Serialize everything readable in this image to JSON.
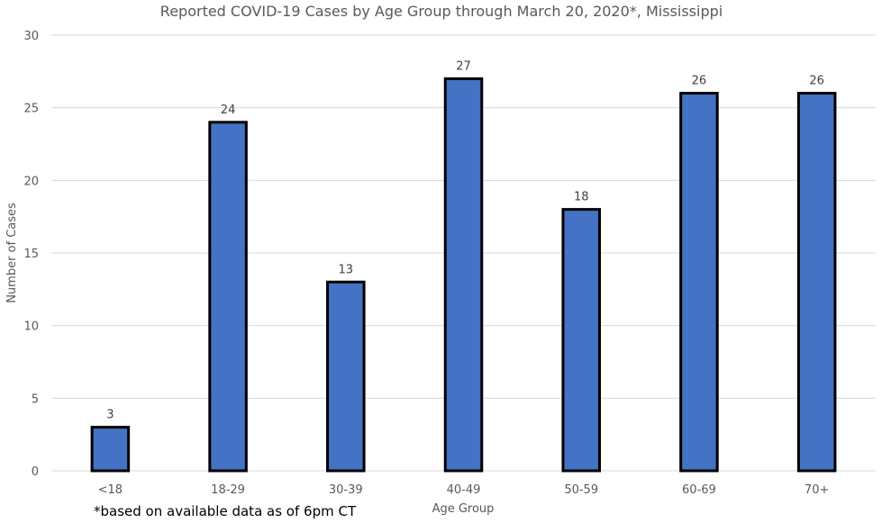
{
  "chart_data": {
    "type": "bar",
    "title": "Reported COVID-19 Cases by Age Group through March 20, 2020*, Mississippi",
    "xlabel": "Age Group",
    "ylabel": "Number of Cases",
    "categories": [
      "<18",
      "18-29",
      "30-39",
      "40-49",
      "50-59",
      "60-69",
      "70+"
    ],
    "values": [
      3,
      24,
      13,
      27,
      18,
      26,
      26
    ],
    "ylim": [
      0,
      30
    ],
    "yticks": [
      0,
      5,
      10,
      15,
      20,
      25,
      30
    ],
    "grid": true,
    "legend": "none",
    "bar_color": "#4472c4",
    "bar_outline": "#000000",
    "footnote": "*based on available data as of 6pm CT"
  }
}
